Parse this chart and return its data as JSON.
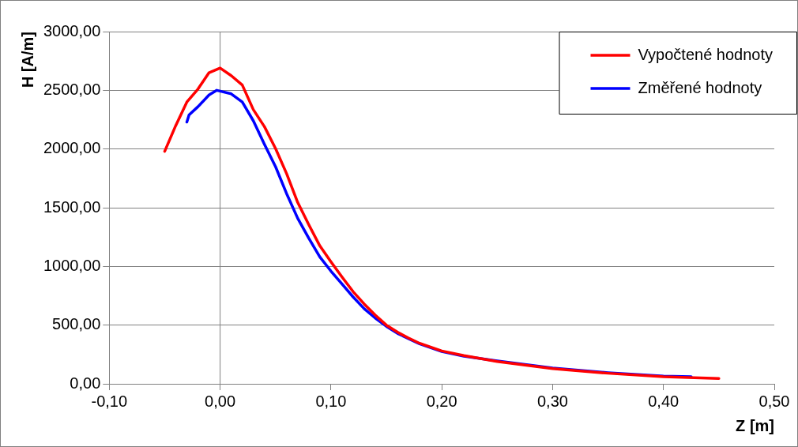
{
  "chart_data": {
    "type": "line",
    "xlabel": "Z [m]",
    "ylabel": "H [A/m]",
    "xlim": [
      -0.1,
      0.5
    ],
    "xticks": [
      {
        "value": -0.1,
        "label": "-0,10"
      },
      {
        "value": 0,
        "label": "0,00"
      },
      {
        "value": 0.1,
        "label": "0,10"
      },
      {
        "value": 0.2,
        "label": "0,20"
      },
      {
        "value": 0.3,
        "label": "0,30"
      },
      {
        "value": 0.4,
        "label": "0,40"
      },
      {
        "value": 0.5,
        "label": "0,50"
      }
    ],
    "ylim": [
      0,
      3000
    ],
    "yticks": [
      {
        "value": 0,
        "label": "0,00"
      },
      {
        "value": 500,
        "label": "500,00"
      },
      {
        "value": 1000,
        "label": "1000,00"
      },
      {
        "value": 1500,
        "label": "1500,00"
      },
      {
        "value": 2000,
        "label": "2000,00"
      },
      {
        "value": 2500,
        "label": "2500,00"
      },
      {
        "value": 3000,
        "label": "3000,00"
      }
    ],
    "grid": "y",
    "legend": "top right",
    "marker": "none",
    "line_style": "solid",
    "ref_lines": [
      {
        "axis": "x",
        "value": 0,
        "color": "#808080"
      }
    ],
    "series": [
      {
        "name": "Vypočtené hodnoty",
        "color": "#ff0000",
        "x": [
          -0.05,
          -0.04,
          -0.03,
          -0.02,
          -0.01,
          0,
          0.01,
          0.02,
          0.03,
          0.04,
          0.05,
          0.06,
          0.07,
          0.08,
          0.09,
          0.1,
          0.11,
          0.12,
          0.13,
          0.14,
          0.15,
          0.16,
          0.17,
          0.18,
          0.2,
          0.22,
          0.25,
          0.3,
          0.35,
          0.4,
          0.45
        ],
        "values": [
          1980,
          2200,
          2400,
          2510,
          2650,
          2690,
          2625,
          2545,
          2335,
          2190,
          2005,
          1790,
          1545,
          1355,
          1175,
          1040,
          910,
          785,
          680,
          585,
          500,
          440,
          390,
          345,
          280,
          240,
          190,
          130,
          90,
          60,
          45
        ]
      },
      {
        "name": "Změřené hodnoty",
        "color": "#0000ff",
        "x": [
          -0.03,
          -0.028,
          -0.02,
          -0.01,
          -0.003,
          0.01,
          0.02,
          0.03,
          0.04,
          0.05,
          0.06,
          0.07,
          0.08,
          0.09,
          0.1,
          0.11,
          0.12,
          0.13,
          0.14,
          0.15,
          0.16,
          0.18,
          0.2,
          0.22,
          0.25,
          0.3,
          0.35,
          0.4,
          0.425
        ],
        "values": [
          2230,
          2290,
          2360,
          2460,
          2500,
          2470,
          2400,
          2240,
          2040,
          1850,
          1620,
          1410,
          1240,
          1080,
          960,
          850,
          740,
          640,
          560,
          490,
          430,
          340,
          275,
          235,
          195,
          135,
          95,
          65,
          60
        ]
      }
    ]
  }
}
